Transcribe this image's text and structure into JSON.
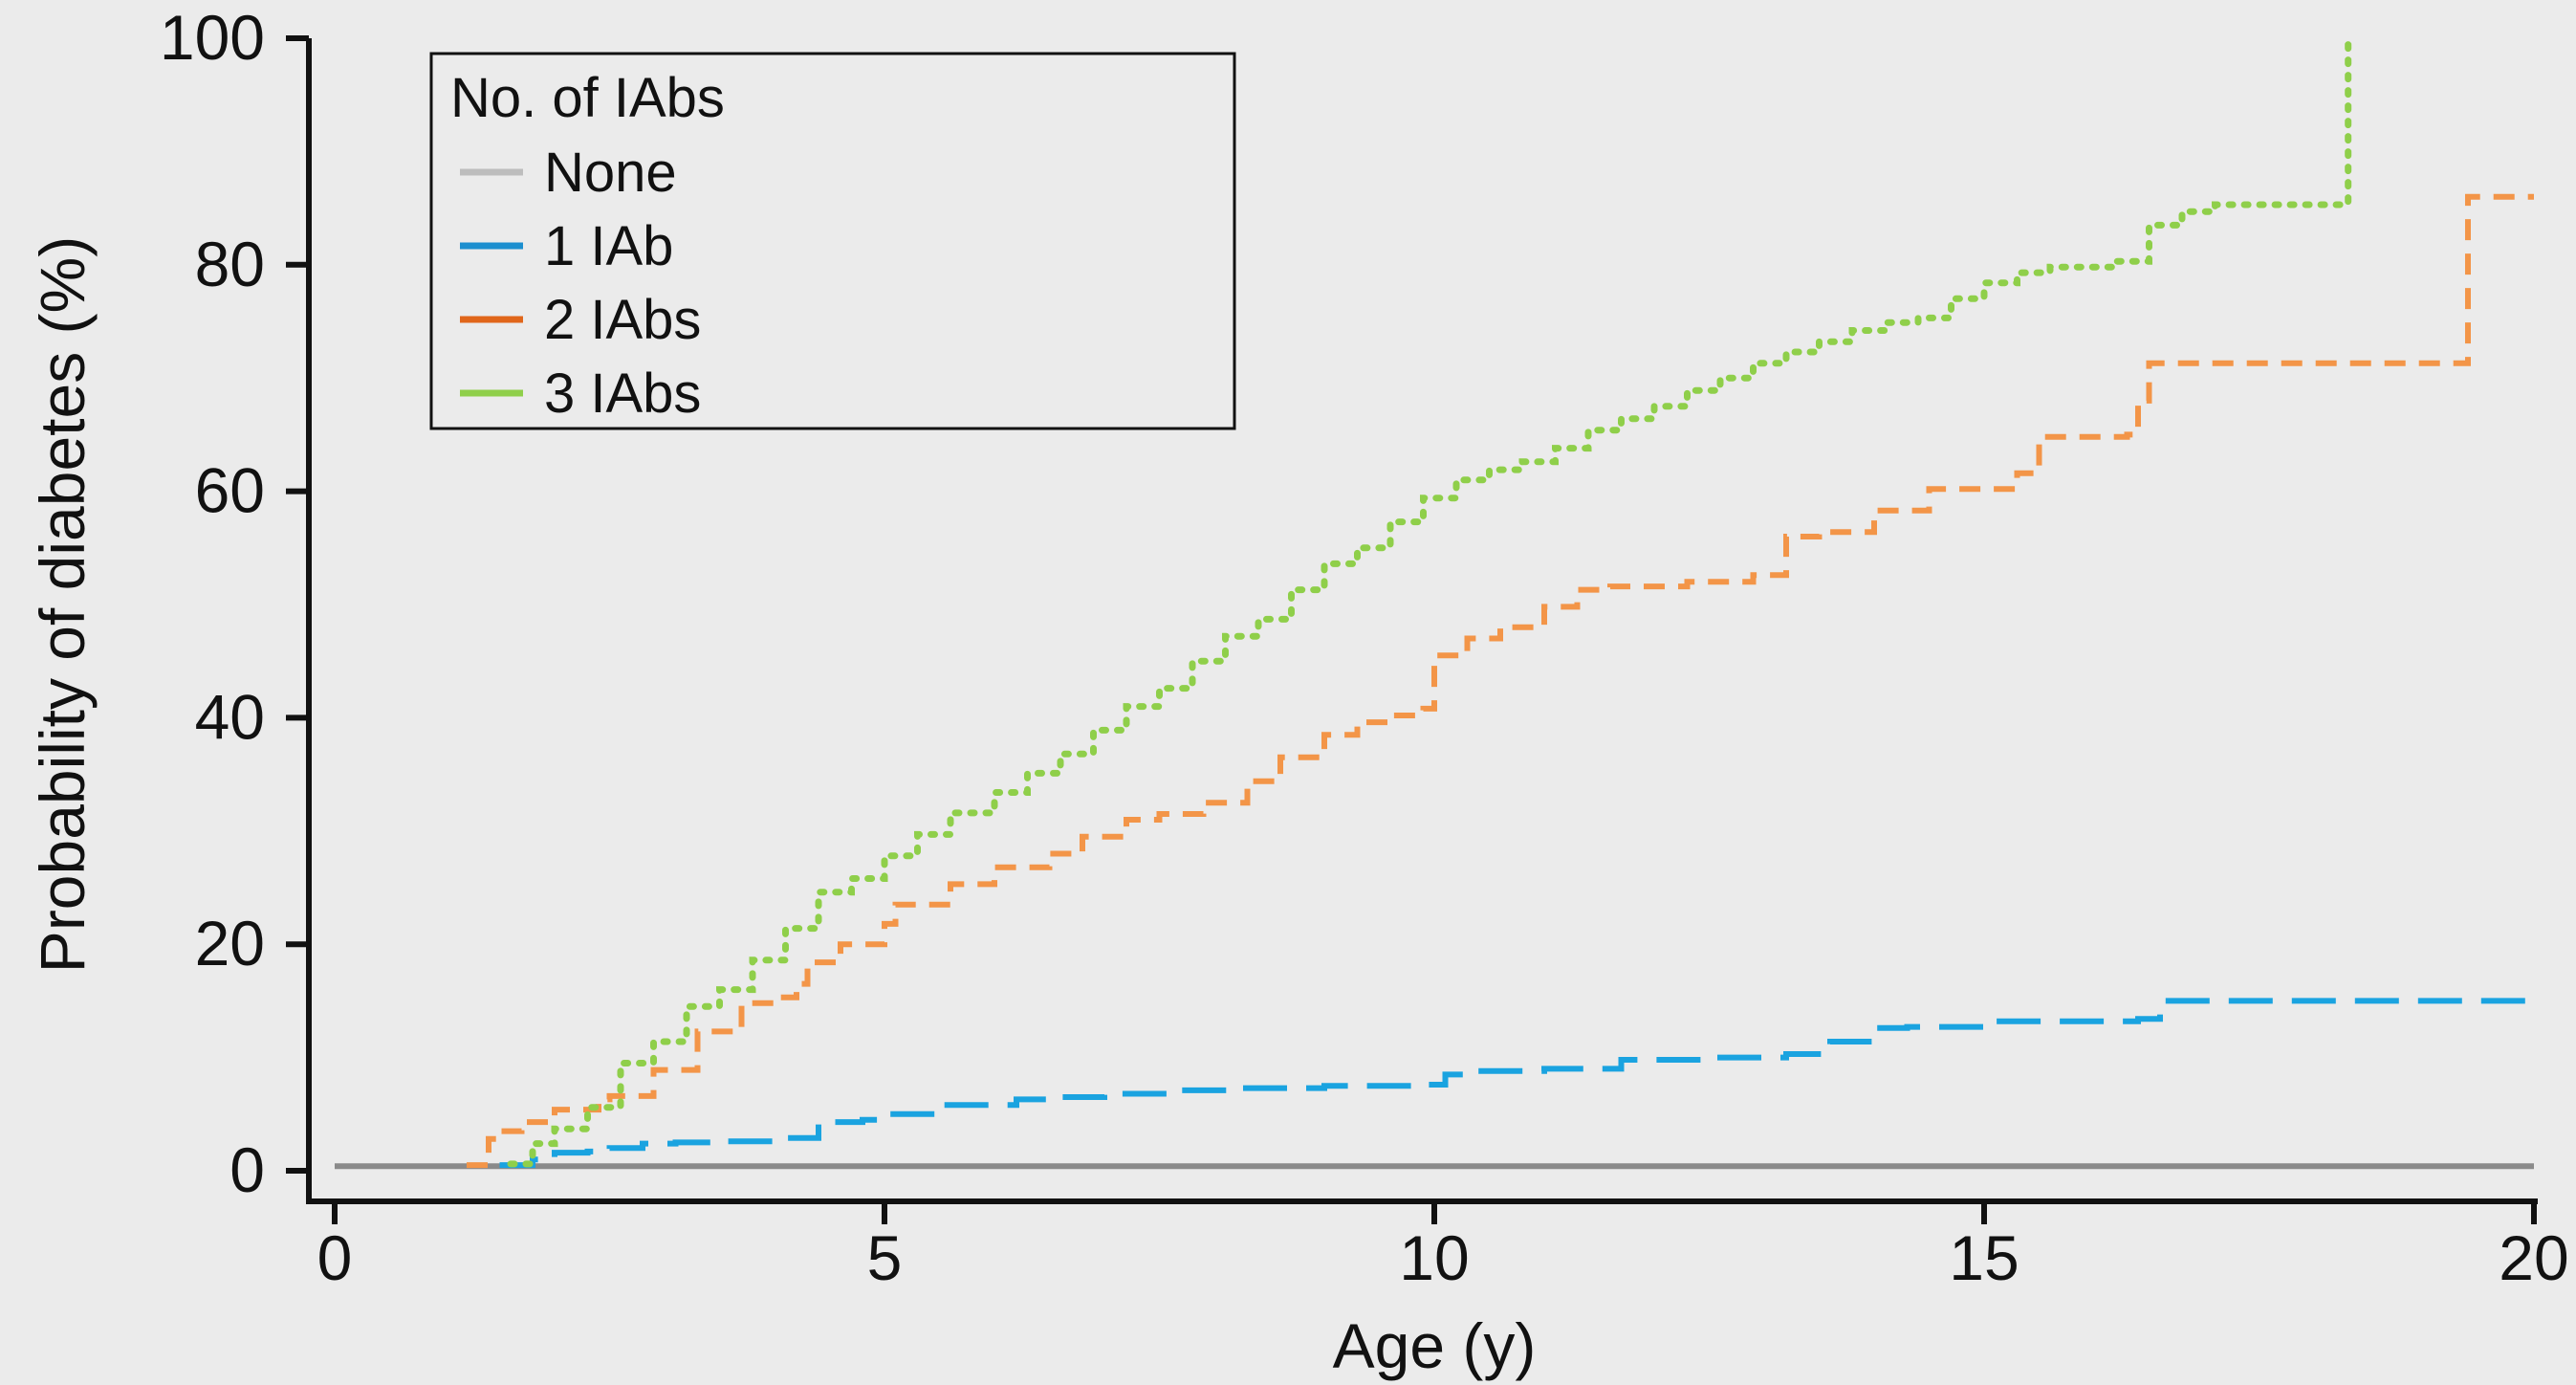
{
  "chart_data": {
    "type": "line",
    "subtype": "step",
    "xlabel": "Age (y)",
    "ylabel": "Probability of diabetes (%)",
    "xlim": [
      0,
      20
    ],
    "ylim": [
      0,
      100
    ],
    "xticks": [
      0,
      5,
      10,
      15,
      20
    ],
    "yticks": [
      0,
      20,
      40,
      60,
      80,
      100
    ],
    "xtick_labels": [
      "0",
      "5",
      "10",
      "15",
      "20"
    ],
    "ytick_labels": [
      "0",
      "20",
      "40",
      "60",
      "80",
      "100"
    ],
    "grid": false,
    "legend": {
      "title": "No. of IAbs",
      "position": "top-left",
      "entries": [
        "None",
        "1 IAb",
        "2 IAbs",
        "3 IAbs"
      ]
    },
    "series": [
      {
        "name": "None",
        "color": "#8a8a8a",
        "legend_color": "#bdbdbd",
        "style": "solid",
        "x": [
          0,
          20
        ],
        "y": [
          0.4,
          0.4
        ]
      },
      {
        "name": "1 IAb",
        "color": "#1aa3e0",
        "legend_color": "#1c8fcf",
        "style": "long-dash",
        "x": [
          1.5,
          1.8,
          2.0,
          2.3,
          2.5,
          2.8,
          3.1,
          3.5,
          4.0,
          4.4,
          4.8,
          5.0,
          5.5,
          6.2,
          6.6,
          7.0,
          7.6,
          8.2,
          9.0,
          9.9,
          10.1,
          10.4,
          11.0,
          11.7,
          12.5,
          13.2,
          13.6,
          14.0,
          14.3,
          15.1,
          16.4,
          16.6,
          20.0
        ],
        "y": [
          0.5,
          1.0,
          1.6,
          1.7,
          2.0,
          2.4,
          2.5,
          2.6,
          2.9,
          4.3,
          4.5,
          5.0,
          5.8,
          6.3,
          6.5,
          6.8,
          7.1,
          7.3,
          7.5,
          7.6,
          8.5,
          8.8,
          9.0,
          9.8,
          10.0,
          10.3,
          11.4,
          12.6,
          12.7,
          13.2,
          13.4,
          15.0,
          15.0
        ]
      },
      {
        "name": "2 IAbs",
        "color": "#f39548",
        "legend_color": "#e0661a",
        "style": "dash",
        "x": [
          1.2,
          1.4,
          1.5,
          1.7,
          2.0,
          2.4,
          2.5,
          2.9,
          3.3,
          3.7,
          4.0,
          4.2,
          4.3,
          4.6,
          5.0,
          5.1,
          5.6,
          6.0,
          6.5,
          6.8,
          7.2,
          7.5,
          7.9,
          8.3,
          8.6,
          9.0,
          9.3,
          9.6,
          9.9,
          10.0,
          10.3,
          10.6,
          11.0,
          11.3,
          11.6,
          12.3,
          12.9,
          13.2,
          13.5,
          14.0,
          14.5,
          15.3,
          15.5,
          16.3,
          16.4,
          16.5,
          18.5,
          19.4,
          20.0
        ],
        "y": [
          0.5,
          2.8,
          3.5,
          4.3,
          5.4,
          6.3,
          6.6,
          8.9,
          12.3,
          14.8,
          15.3,
          16.5,
          18.4,
          20.0,
          21.8,
          23.5,
          25.3,
          26.8,
          28.0,
          29.5,
          31.0,
          31.5,
          32.5,
          34.4,
          36.5,
          38.5,
          39.6,
          40.2,
          40.8,
          45.5,
          47.0,
          48.0,
          49.8,
          51.3,
          51.6,
          52.0,
          52.6,
          56.0,
          56.4,
          58.3,
          60.2,
          61.6,
          64.8,
          65.0,
          68.0,
          71.3,
          71.3,
          86.0,
          86.0
        ]
      },
      {
        "name": "3 IAbs",
        "color": "#8fcf4a",
        "legend_color": "#8fcf4a",
        "style": "dotted",
        "x": [
          1.6,
          1.8,
          2.0,
          2.3,
          2.6,
          2.9,
          3.2,
          3.5,
          3.8,
          4.1,
          4.4,
          4.7,
          5.0,
          5.3,
          5.6,
          6.0,
          6.3,
          6.6,
          6.9,
          7.2,
          7.5,
          7.8,
          8.1,
          8.4,
          8.7,
          9.0,
          9.3,
          9.6,
          9.9,
          10.2,
          10.5,
          10.8,
          11.1,
          11.4,
          11.7,
          12.0,
          12.3,
          12.6,
          12.9,
          13.2,
          13.5,
          13.8,
          14.1,
          14.4,
          14.7,
          15.0,
          15.3,
          15.6,
          15.9,
          16.2,
          16.5,
          16.8,
          17.1,
          17.5,
          18.0,
          18.3,
          18.31
        ],
        "y": [
          0.6,
          2.4,
          3.7,
          5.6,
          9.5,
          11.4,
          14.5,
          16.0,
          18.6,
          21.4,
          24.6,
          25.8,
          27.8,
          29.7,
          31.6,
          33.4,
          35.1,
          36.8,
          38.9,
          41.0,
          42.6,
          45.0,
          47.2,
          48.7,
          51.3,
          53.6,
          55.0,
          57.3,
          59.4,
          61.0,
          61.9,
          62.6,
          63.8,
          65.4,
          66.4,
          67.5,
          68.9,
          70.0,
          71.3,
          72.3,
          73.2,
          74.2,
          74.9,
          75.3,
          77.0,
          78.4,
          79.3,
          79.8,
          79.8,
          80.3,
          83.5,
          84.7,
          85.3,
          85.3,
          85.3,
          85.3,
          100
        ]
      }
    ]
  }
}
